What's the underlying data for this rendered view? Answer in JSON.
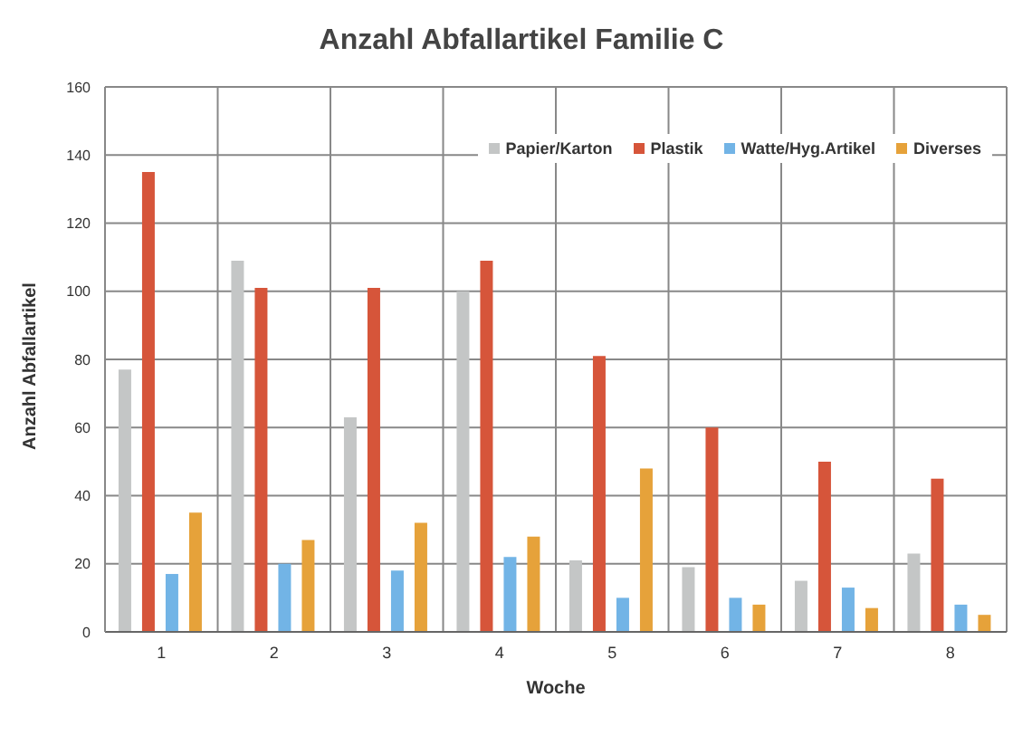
{
  "chart_data": {
    "type": "bar",
    "title": "Anzahl Abfallartikel Familie C",
    "xlabel": "Woche",
    "ylabel": "Anzahl Abfallartikel",
    "categories": [
      "1",
      "2",
      "3",
      "4",
      "5",
      "6",
      "7",
      "8"
    ],
    "series": [
      {
        "name": "Papier/Karton",
        "color": "#c4c6c6",
        "values": [
          77,
          109,
          63,
          100,
          21,
          19,
          15,
          23
        ]
      },
      {
        "name": "Plastik",
        "color": "#d6553a",
        "values": [
          135,
          101,
          101,
          109,
          81,
          60,
          50,
          45
        ]
      },
      {
        "name": "Watte/Hyg.Artikel",
        "color": "#72b4e6",
        "values": [
          17,
          20,
          18,
          22,
          10,
          10,
          13,
          8
        ]
      },
      {
        "name": "Diverses",
        "color": "#e6a23a",
        "values": [
          35,
          27,
          32,
          28,
          48,
          8,
          7,
          5
        ]
      }
    ],
    "ylim": [
      0,
      160
    ],
    "yticks": [
      0,
      20,
      40,
      60,
      80,
      100,
      120,
      140,
      160
    ],
    "grid": true,
    "legend": "top right"
  }
}
